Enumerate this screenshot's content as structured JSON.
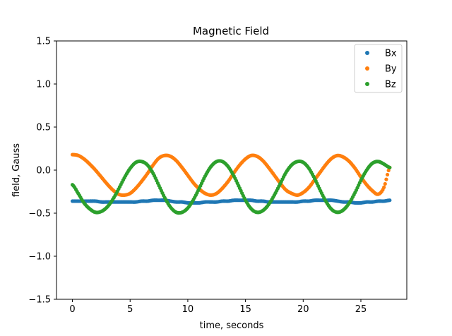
{
  "chart_data": {
    "type": "scatter",
    "title": "Magnetic Field",
    "xlabel": "time, seconds",
    "ylabel": "field, Gauss",
    "xlim": [
      -1.38,
      28.98
    ],
    "ylim": [
      -1.5,
      1.5
    ],
    "xticks": [
      0,
      5,
      10,
      15,
      20,
      25
    ],
    "yticks": [
      -1.5,
      -1.0,
      -0.5,
      0.0,
      0.5,
      1.0,
      1.5
    ],
    "xtick_labels": [
      "0",
      "5",
      "10",
      "15",
      "20",
      "25"
    ],
    "ytick_labels": [
      "−1.5",
      "−1.0",
      "−0.5",
      "0.0",
      "0.5",
      "1.0",
      "1.5"
    ],
    "grid": false,
    "legend_position": "top-right",
    "series": [
      {
        "name": "Bx",
        "color": "#1f77b4",
        "x": [
          0,
          0.5,
          1,
          1.5,
          2,
          2.5,
          3,
          3.5,
          4,
          4.5,
          5,
          5.5,
          6,
          6.5,
          7,
          7.5,
          8,
          8.5,
          9,
          9.5,
          10,
          10.5,
          11,
          11.5,
          12,
          12.5,
          13,
          13.5,
          14,
          14.5,
          15,
          15.5,
          16,
          16.5,
          17,
          17.5,
          18,
          18.5,
          19,
          19.5,
          20,
          20.5,
          21,
          21.5,
          22,
          22.5,
          23,
          23.5,
          24,
          24.5,
          25,
          25.5,
          26,
          26.5,
          27,
          27.5
        ],
        "y": [
          -0.36,
          -0.36,
          -0.36,
          -0.36,
          -0.36,
          -0.37,
          -0.37,
          -0.37,
          -0.37,
          -0.37,
          -0.37,
          -0.37,
          -0.36,
          -0.36,
          -0.35,
          -0.35,
          -0.35,
          -0.36,
          -0.37,
          -0.37,
          -0.38,
          -0.38,
          -0.38,
          -0.37,
          -0.37,
          -0.37,
          -0.36,
          -0.36,
          -0.35,
          -0.35,
          -0.35,
          -0.35,
          -0.36,
          -0.36,
          -0.37,
          -0.37,
          -0.37,
          -0.37,
          -0.37,
          -0.37,
          -0.36,
          -0.36,
          -0.35,
          -0.35,
          -0.35,
          -0.35,
          -0.36,
          -0.37,
          -0.37,
          -0.38,
          -0.38,
          -0.37,
          -0.37,
          -0.36,
          -0.36,
          -0.35
        ]
      },
      {
        "name": "By",
        "color": "#ff7f0e",
        "x": [
          0,
          0.5,
          1,
          1.5,
          2,
          2.5,
          3,
          3.5,
          4,
          4.5,
          5,
          5.5,
          6,
          6.5,
          7,
          7.5,
          8,
          8.5,
          9,
          9.5,
          10,
          10.5,
          11,
          11.5,
          12,
          12.5,
          13,
          13.5,
          14,
          14.5,
          15,
          15.5,
          16,
          16.5,
          17,
          17.5,
          18,
          18.5,
          19,
          19.5,
          20,
          20.5,
          21,
          21.5,
          22,
          22.5,
          23,
          23.5,
          24,
          24.5,
          25,
          25.5,
          26,
          26.5,
          27,
          27.5
        ],
        "y": [
          0.18,
          0.17,
          0.13,
          0.07,
          0.0,
          -0.08,
          -0.16,
          -0.23,
          -0.28,
          -0.29,
          -0.27,
          -0.21,
          -0.13,
          -0.04,
          0.06,
          0.14,
          0.17,
          0.16,
          0.11,
          0.03,
          -0.06,
          -0.15,
          -0.22,
          -0.27,
          -0.29,
          -0.27,
          -0.21,
          -0.13,
          -0.03,
          0.06,
          0.13,
          0.17,
          0.16,
          0.11,
          0.03,
          -0.06,
          -0.15,
          -0.23,
          -0.27,
          -0.29,
          -0.26,
          -0.2,
          -0.11,
          -0.02,
          0.07,
          0.14,
          0.17,
          0.15,
          0.1,
          0.02,
          -0.08,
          -0.17,
          -0.24,
          -0.28,
          -0.2,
          0.03
        ]
      },
      {
        "name": "Bz",
        "color": "#2ca02c",
        "x": [
          0,
          0.5,
          1,
          1.5,
          2,
          2.5,
          3,
          3.5,
          4,
          4.5,
          5,
          5.5,
          6,
          6.5,
          7,
          7.5,
          8,
          8.5,
          9,
          9.5,
          10,
          10.5,
          11,
          11.5,
          12,
          12.5,
          13,
          13.5,
          14,
          14.5,
          15,
          15.5,
          16,
          16.5,
          17,
          17.5,
          18,
          18.5,
          19,
          19.5,
          20,
          20.5,
          21,
          21.5,
          22,
          22.5,
          23,
          23.5,
          24,
          24.5,
          25,
          25.5,
          26,
          26.5,
          27,
          27.5
        ],
        "y": [
          -0.17,
          -0.27,
          -0.38,
          -0.45,
          -0.49,
          -0.48,
          -0.43,
          -0.34,
          -0.22,
          -0.09,
          0.02,
          0.09,
          0.1,
          0.06,
          -0.04,
          -0.18,
          -0.32,
          -0.43,
          -0.49,
          -0.49,
          -0.44,
          -0.34,
          -0.21,
          -0.07,
          0.04,
          0.1,
          0.1,
          0.04,
          -0.07,
          -0.21,
          -0.35,
          -0.45,
          -0.49,
          -0.47,
          -0.4,
          -0.29,
          -0.16,
          -0.03,
          0.06,
          0.1,
          0.09,
          0.02,
          -0.1,
          -0.24,
          -0.37,
          -0.46,
          -0.49,
          -0.46,
          -0.38,
          -0.26,
          -0.12,
          0.0,
          0.08,
          0.1,
          0.07,
          0.03
        ]
      }
    ]
  }
}
